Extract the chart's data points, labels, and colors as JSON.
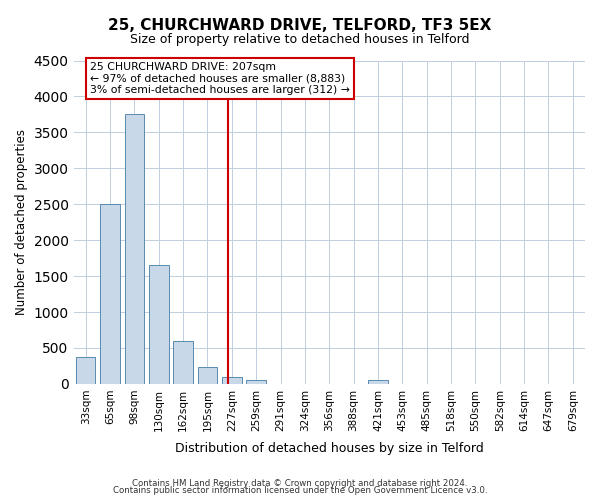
{
  "title": "25, CHURCHWARD DRIVE, TELFORD, TF3 5EX",
  "subtitle": "Size of property relative to detached houses in Telford",
  "xlabel": "Distribution of detached houses by size in Telford",
  "ylabel": "Number of detached properties",
  "bar_labels": [
    "33sqm",
    "65sqm",
    "98sqm",
    "130sqm",
    "162sqm",
    "195sqm",
    "227sqm",
    "259sqm",
    "291sqm",
    "324sqm",
    "356sqm",
    "388sqm",
    "421sqm",
    "453sqm",
    "485sqm",
    "518sqm",
    "550sqm",
    "582sqm",
    "614sqm",
    "647sqm",
    "679sqm"
  ],
  "bar_values": [
    380,
    2500,
    3750,
    1650,
    600,
    240,
    100,
    55,
    0,
    0,
    0,
    0,
    50,
    0,
    0,
    0,
    0,
    0,
    0,
    0,
    0
  ],
  "bar_color": "#c8d8e8",
  "bar_edge_color": "#5a8ab0",
  "property_line_x": 5.85,
  "property_line_color": "#cc0000",
  "ylim": [
    0,
    4500
  ],
  "yticks": [
    0,
    500,
    1000,
    1500,
    2000,
    2500,
    3000,
    3500,
    4000,
    4500
  ],
  "annotation_title": "25 CHURCHWARD DRIVE: 207sqm",
  "annotation_line1": "← 97% of detached houses are smaller (8,883)",
  "annotation_line2": "3% of semi-detached houses are larger (312) →",
  "annotation_box_color": "#cc0000",
  "footer_line1": "Contains HM Land Registry data © Crown copyright and database right 2024.",
  "footer_line2": "Contains public sector information licensed under the Open Government Licence v3.0.",
  "background_color": "#ffffff",
  "grid_color": "#c0cfe0"
}
